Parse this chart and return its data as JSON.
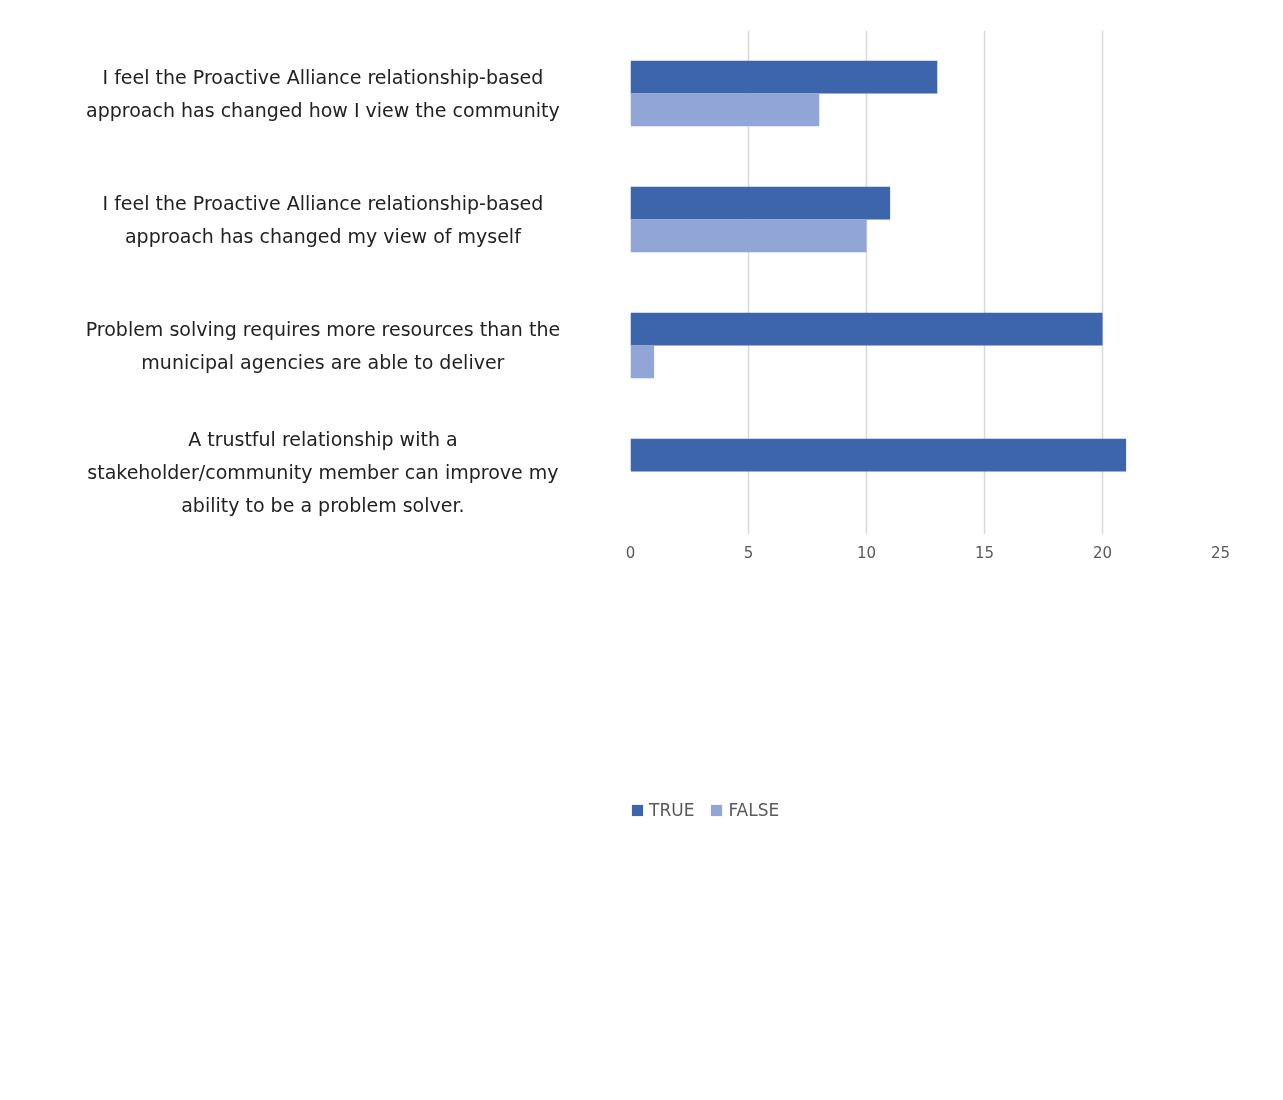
{
  "chart_data": {
    "type": "bar",
    "orientation": "horizontal",
    "categories": [
      "I feel the Proactive Alliance relationship-based approach has changed how I view the community",
      "I feel the Proactive Alliance relationship-based approach has changed my view of myself",
      "Problem solving requires more resources than the municipal agencies are able to deliver",
      "A trustful relationship with a stakeholder/community member can improve my ability to be a problem solver."
    ],
    "series": [
      {
        "name": "TRUE",
        "color": "#3d65ab",
        "values": [
          13,
          11,
          20,
          21
        ]
      },
      {
        "name": "FALSE",
        "color": "#91a5d6",
        "values": [
          8,
          10,
          1,
          0
        ]
      }
    ],
    "xlim": [
      0,
      25
    ],
    "xticks": [
      0,
      5,
      10,
      15,
      20,
      25
    ],
    "grid": "x",
    "legend": "bottom"
  }
}
